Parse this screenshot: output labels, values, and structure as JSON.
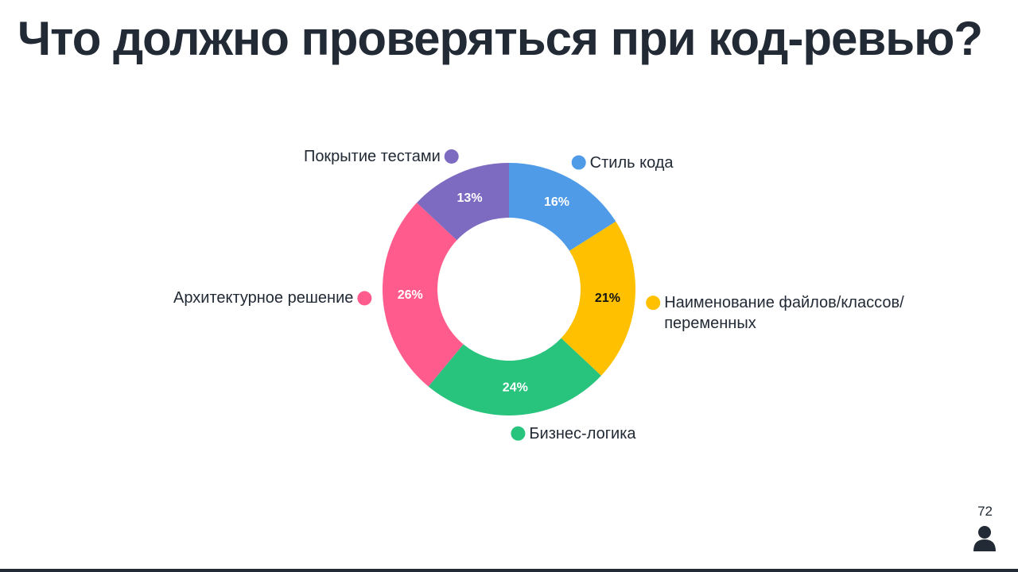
{
  "page_number": "72",
  "chart_data": {
    "type": "donut",
    "title": "Что должно проверяться при код-ревью?",
    "categories": [
      "Стиль кода",
      "Наименование файлов/классов/переменных",
      "Бизнес-логика",
      "Архитектурное решение",
      "Покрытие тестами"
    ],
    "values": [
      16,
      21,
      24,
      26,
      13
    ],
    "value_labels": [
      "16%",
      "21%",
      "24%",
      "26%",
      "13%"
    ],
    "colors": [
      "#4f9be8",
      "#ffc000",
      "#28c47d",
      "#ff5c8d",
      "#7c6bc0"
    ]
  }
}
